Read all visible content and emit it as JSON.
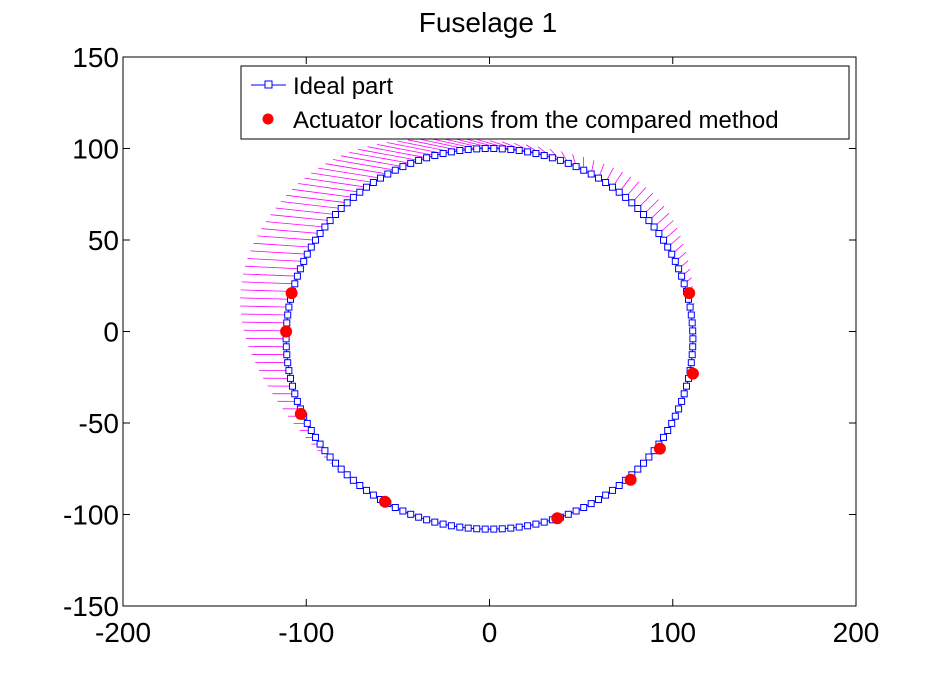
{
  "chart_data": {
    "type": "line",
    "title": "Fuselage 1",
    "xlabel": "",
    "ylabel": "",
    "xlim": [
      -200,
      200
    ],
    "ylim": [
      -150,
      150
    ],
    "x_ticks": [
      -200,
      -100,
      0,
      100,
      200
    ],
    "y_ticks": [
      -150,
      -100,
      -50,
      0,
      50,
      100,
      150
    ],
    "x_tick_labels": [
      "-200",
      "-100",
      "0",
      "100",
      "200"
    ],
    "y_tick_labels": [
      "-150",
      "-100",
      "-50",
      "0",
      "50",
      "100",
      "150"
    ],
    "grid": false,
    "legend_position": "top-right",
    "legend": [
      "Ideal part",
      "Actuator locations from the compared method"
    ],
    "colors": {
      "ideal": "#0000ff",
      "actuators": "#ff0000",
      "deviation": "#ff00ff"
    },
    "series": [
      {
        "name": "Ideal part",
        "marker": "square",
        "shape": "ellipse",
        "center": [
          0,
          -4
        ],
        "semi_axis_x": 111,
        "semi_axis_y": 104,
        "point_count": 150
      },
      {
        "name": "Actuator locations from the compared method",
        "marker": "circle",
        "x": [
          -108,
          -111,
          -103,
          -57,
          37,
          77,
          93,
          109,
          111
        ],
        "y": [
          21,
          0,
          -45,
          -93,
          -102,
          -81,
          -64,
          21,
          -23
        ]
      }
    ],
    "deviation_vectors": {
      "description": "magenta hatch lines from ideal contour to deformed shape",
      "bulge_peak_x": -135,
      "bulge_peak_y": 8
    }
  }
}
